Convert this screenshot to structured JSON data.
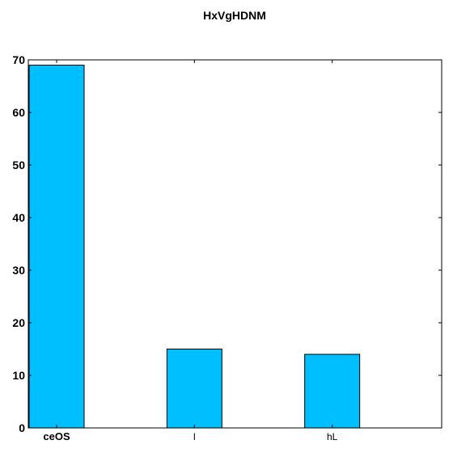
{
  "chart_data": {
    "type": "bar",
    "title": "HxVgHDNM",
    "xlabel": "",
    "ylabel": "",
    "categories": [
      "ceOS",
      "l",
      "hL"
    ],
    "category_bold": [
      true,
      false,
      false
    ],
    "values": [
      69,
      15,
      14
    ],
    "ylim": [
      0,
      70
    ],
    "yticks": [
      0,
      10,
      20,
      30,
      40,
      50,
      60,
      70
    ],
    "bar_color": "#00bfff",
    "edge_color": "#000000",
    "grid": false,
    "legend": "none"
  }
}
